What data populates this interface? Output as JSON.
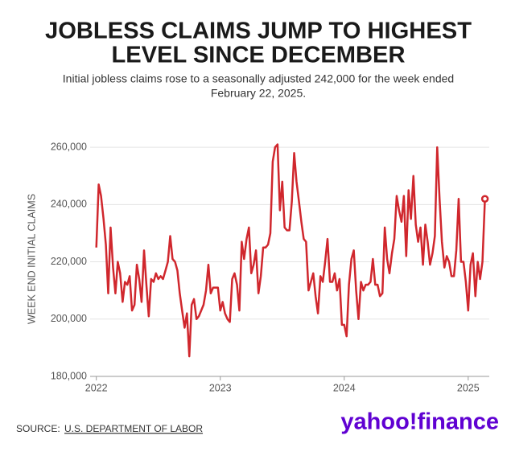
{
  "chart_data": {
    "type": "line",
    "title": [
      "JOBLESS CLAIMS JUMP TO HIGHEST",
      "LEVEL SINCE DECEMBER"
    ],
    "subtitle": [
      "Initial jobless claims rose to a seasonally adjusted 242,000 for the week ended",
      "February 22, 2025."
    ],
    "y_label": "WEEK END INITIAL CLAIMS",
    "source_label": "SOURCE:",
    "source": "U.S. DEPARTMENT OF LABOR",
    "logo": "yahoo!finance",
    "x": [
      2022,
      2022.019,
      2022.038,
      2022.058,
      2022.077,
      2022.096,
      2022.115,
      2022.135,
      2022.154,
      2022.173,
      2022.192,
      2022.212,
      2022.231,
      2022.25,
      2022.269,
      2022.288,
      2022.308,
      2022.327,
      2022.346,
      2022.365,
      2022.385,
      2022.404,
      2022.423,
      2022.442,
      2022.462,
      2022.481,
      2022.5,
      2022.519,
      2022.538,
      2022.558,
      2022.577,
      2022.596,
      2022.615,
      2022.635,
      2022.654,
      2022.673,
      2022.692,
      2022.712,
      2022.731,
      2022.75,
      2022.769,
      2022.788,
      2022.808,
      2022.827,
      2022.846,
      2022.865,
      2022.885,
      2022.904,
      2022.923,
      2022.942,
      2022.962,
      2022.981,
      2023,
      2023.019,
      2023.038,
      2023.058,
      2023.077,
      2023.096,
      2023.115,
      2023.135,
      2023.154,
      2023.173,
      2023.192,
      2023.212,
      2023.231,
      2023.25,
      2023.269,
      2023.288,
      2023.308,
      2023.327,
      2023.346,
      2023.365,
      2023.385,
      2023.404,
      2023.423,
      2023.442,
      2023.462,
      2023.481,
      2023.5,
      2023.519,
      2023.538,
      2023.558,
      2023.577,
      2023.596,
      2023.615,
      2023.635,
      2023.654,
      2023.673,
      2023.692,
      2023.712,
      2023.731,
      2023.75,
      2023.769,
      2023.788,
      2023.808,
      2023.827,
      2023.846,
      2023.865,
      2023.885,
      2023.904,
      2023.923,
      2023.942,
      2023.962,
      2023.981,
      2024,
      2024.019,
      2024.038,
      2024.058,
      2024.077,
      2024.096,
      2024.115,
      2024.135,
      2024.154,
      2024.173,
      2024.192,
      2024.212,
      2024.231,
      2024.25,
      2024.269,
      2024.288,
      2024.308,
      2024.327,
      2024.346,
      2024.365,
      2024.385,
      2024.404,
      2024.423,
      2024.442,
      2024.462,
      2024.481,
      2024.5,
      2024.519,
      2024.538,
      2024.558,
      2024.577,
      2024.596,
      2024.615,
      2024.635,
      2024.654,
      2024.673,
      2024.692,
      2024.712,
      2024.731,
      2024.75,
      2024.769,
      2024.788,
      2024.808,
      2024.827,
      2024.846,
      2024.865,
      2024.885,
      2024.904,
      2024.923,
      2024.942,
      2024.962,
      2024.981,
      2025,
      2025.019,
      2025.038,
      2025.058,
      2025.077,
      2025.096,
      2025.115,
      2025.135
    ],
    "series": [
      {
        "name": "Initial claims",
        "color": "#d0272d",
        "values": [
          225,
          247,
          243,
          235,
          226,
          209,
          232,
          218,
          209,
          220,
          216,
          206,
          213,
          212,
          215,
          203,
          205,
          219,
          214,
          206,
          224,
          212,
          201,
          214,
          213,
          216,
          214,
          215,
          214,
          217,
          220,
          229,
          221,
          220,
          217,
          209,
          203,
          197,
          202,
          187,
          205,
          207,
          200,
          201,
          203,
          205,
          210,
          219,
          209,
          211,
          211,
          211,
          203,
          206,
          202,
          200,
          199,
          214,
          216,
          212,
          203,
          227,
          221,
          228,
          232,
          216,
          219,
          224,
          209,
          215,
          225,
          225,
          226,
          230,
          255,
          260,
          261,
          238,
          248,
          232,
          231,
          231,
          241,
          258,
          248,
          241,
          234,
          228,
          227,
          210,
          213,
          216,
          208,
          202,
          215,
          213,
          220,
          228,
          213,
          213,
          216,
          210,
          214,
          198,
          198,
          194,
          212,
          221,
          224,
          210,
          200,
          213,
          210,
          212,
          212,
          213,
          221,
          212,
          212,
          208,
          209,
          232,
          221,
          216,
          223,
          228,
          243,
          238,
          234,
          243,
          222,
          245,
          235,
          250,
          233,
          227,
          232,
          219,
          233,
          227,
          219,
          223,
          229,
          260,
          242,
          227,
          218,
          222,
          220,
          215,
          215,
          224,
          242,
          220,
          220,
          213,
          203,
          219,
          223,
          208,
          220,
          214,
          220,
          242
        ]
      }
    ],
    "value_scale": 1000,
    "xlim": [
      2021.95,
      2025.17
    ],
    "xticks": [
      2022,
      2023,
      2024,
      2025
    ],
    "ylim": [
      180000,
      262000
    ],
    "yticks": [
      {
        "value": 180000,
        "label": "180,000"
      },
      {
        "value": 200000,
        "label": "200,000"
      },
      {
        "value": 220000,
        "label": "220,000"
      },
      {
        "value": 240000,
        "label": "240,000"
      },
      {
        "value": 260000,
        "label": "260,000"
      }
    ],
    "grid": true
  }
}
